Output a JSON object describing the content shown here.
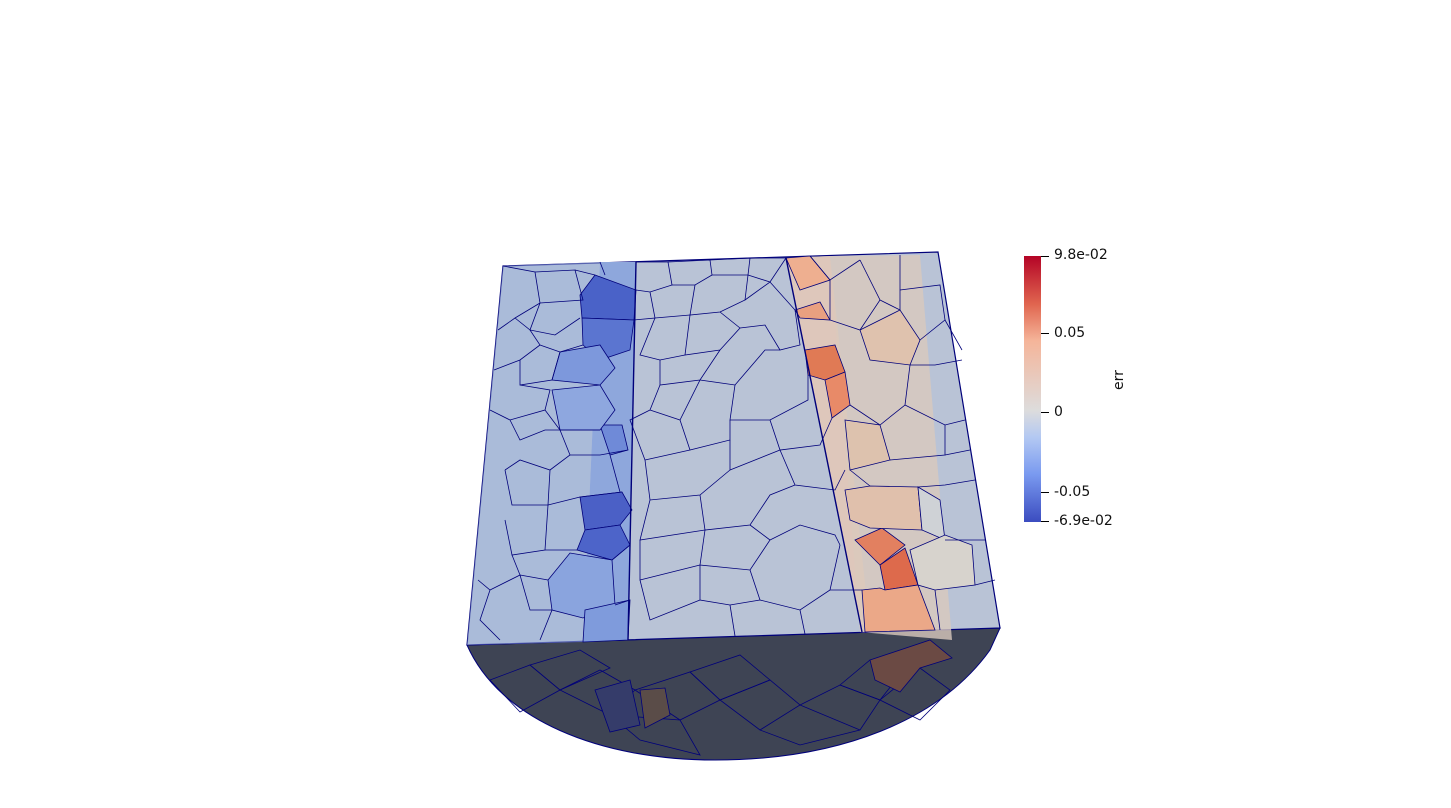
{
  "colorbar": {
    "title": "err",
    "labels": {
      "max": "9.8e-02",
      "t1": "0.05",
      "t2": "0",
      "t3": "-0.05",
      "min": "-6.9e-02"
    },
    "colormap": [
      "#3b4cc0",
      "#7a9af0",
      "#b4c9f2",
      "#dddcdc",
      "#f5b59a",
      "#e0654f",
      "#b40426"
    ]
  },
  "scene": {
    "mesh_edge_color": "#00007a",
    "face_base_color": "#b9c3d6",
    "bottom_shade_color": "#3b4150"
  }
}
